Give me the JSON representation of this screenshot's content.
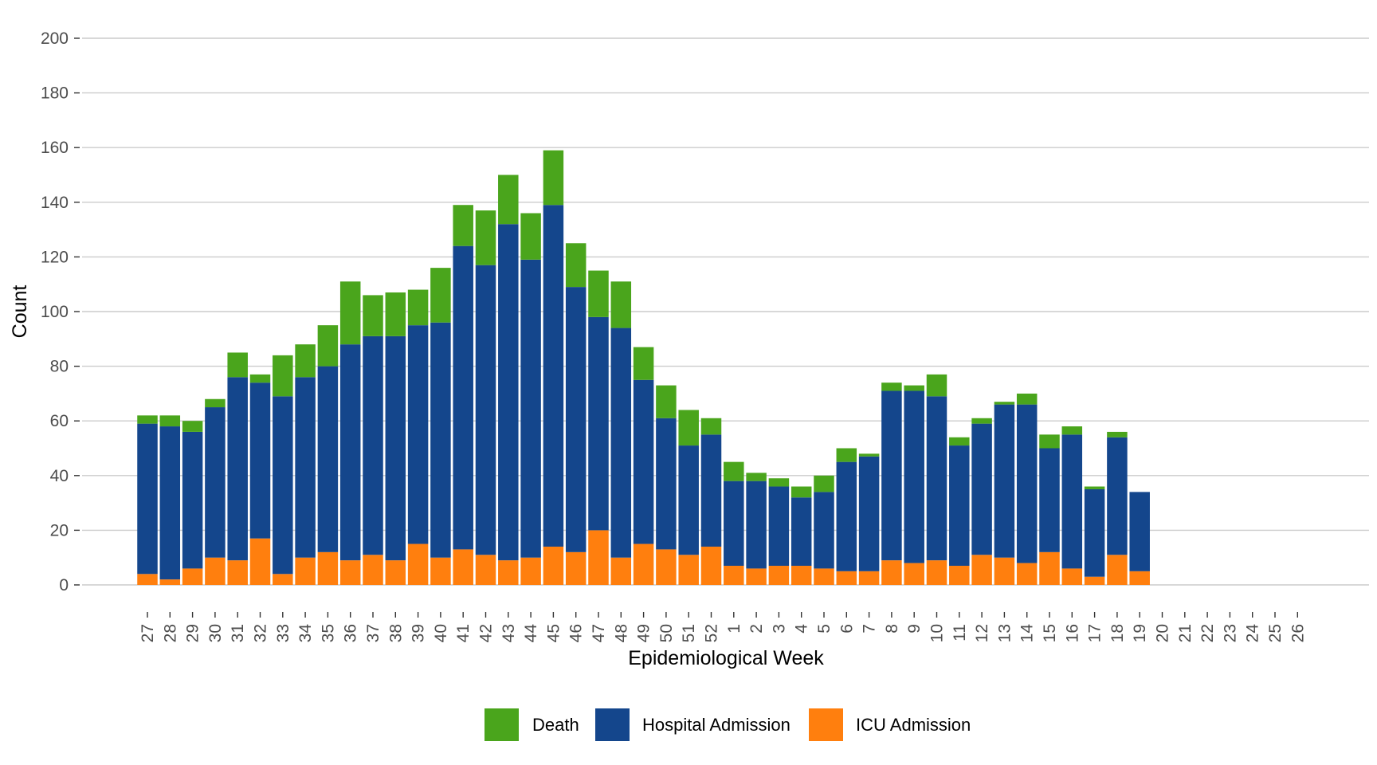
{
  "chart_data": {
    "type": "bar",
    "stacked": true,
    "title": "",
    "xlabel": "Epidemiological Week",
    "ylabel": "Count",
    "ylim": [
      0,
      200
    ],
    "yticks": [
      0,
      20,
      40,
      60,
      80,
      100,
      120,
      140,
      160,
      180,
      200
    ],
    "grid": "horizontal",
    "legend_position": "bottom",
    "categories": [
      "27",
      "28",
      "29",
      "30",
      "31",
      "32",
      "33",
      "34",
      "35",
      "36",
      "37",
      "38",
      "39",
      "40",
      "41",
      "42",
      "43",
      "44",
      "45",
      "46",
      "47",
      "48",
      "49",
      "50",
      "51",
      "52",
      "1",
      "2",
      "3",
      "4",
      "5",
      "6",
      "7",
      "8",
      "9",
      "10",
      "11",
      "12",
      "13",
      "14",
      "15",
      "16",
      "17",
      "18",
      "19",
      "20",
      "21",
      "22",
      "23",
      "24",
      "25",
      "26"
    ],
    "series": [
      {
        "name": "ICU Admission",
        "color": "#ff7f0e",
        "values": [
          4,
          2,
          6,
          10,
          9,
          17,
          4,
          10,
          12,
          9,
          11,
          9,
          15,
          10,
          13,
          11,
          9,
          10,
          14,
          12,
          20,
          10,
          15,
          13,
          11,
          14,
          7,
          6,
          7,
          7,
          6,
          5,
          5,
          9,
          8,
          9,
          7,
          11,
          10,
          8,
          12,
          6,
          3,
          11,
          5,
          0,
          0,
          0,
          0,
          0,
          0,
          0
        ]
      },
      {
        "name": "Hospital Admission",
        "color": "#14468c",
        "values": [
          55,
          56,
          50,
          55,
          67,
          57,
          65,
          66,
          68,
          79,
          80,
          82,
          80,
          86,
          111,
          106,
          123,
          109,
          125,
          97,
          78,
          84,
          60,
          48,
          40,
          41,
          31,
          32,
          29,
          25,
          28,
          40,
          42,
          62,
          63,
          60,
          44,
          48,
          56,
          58,
          38,
          49,
          32,
          43,
          29,
          0,
          0,
          0,
          0,
          0,
          0,
          0
        ]
      },
      {
        "name": "Death",
        "color": "#4aa51c",
        "values": [
          3,
          4,
          4,
          3,
          9,
          3,
          15,
          12,
          15,
          23,
          15,
          16,
          13,
          20,
          15,
          20,
          18,
          17,
          20,
          16,
          17,
          17,
          12,
          12,
          13,
          6,
          7,
          3,
          3,
          4,
          6,
          5,
          1,
          3,
          2,
          8,
          3,
          2,
          1,
          4,
          5,
          3,
          1,
          2,
          0,
          0,
          0,
          0,
          0,
          0,
          0,
          0
        ]
      }
    ],
    "legend": [
      {
        "label": "Death",
        "color": "#4aa51c"
      },
      {
        "label": "Hospital Admission",
        "color": "#14468c"
      },
      {
        "label": "ICU Admission",
        "color": "#ff7f0e"
      }
    ]
  }
}
